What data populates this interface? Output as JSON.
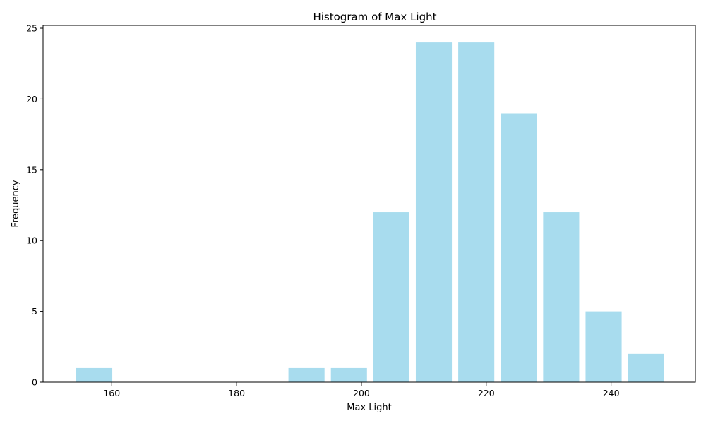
{
  "chart_data": {
    "type": "bar",
    "title": "Histogram of Max Light",
    "xlabel": "Max Light",
    "ylabel": "Frequency",
    "bins": [
      {
        "start": 153.8,
        "end": 160.6,
        "count": 1
      },
      {
        "start": 160.6,
        "end": 167.4,
        "count": 0
      },
      {
        "start": 167.4,
        "end": 174.2,
        "count": 0
      },
      {
        "start": 174.2,
        "end": 181.0,
        "count": 0
      },
      {
        "start": 181.0,
        "end": 187.8,
        "count": 0
      },
      {
        "start": 187.8,
        "end": 194.6,
        "count": 1
      },
      {
        "start": 194.6,
        "end": 201.4,
        "count": 1
      },
      {
        "start": 201.4,
        "end": 208.2,
        "count": 12
      },
      {
        "start": 208.2,
        "end": 215.0,
        "count": 24
      },
      {
        "start": 215.0,
        "end": 221.8,
        "count": 24
      },
      {
        "start": 221.8,
        "end": 228.6,
        "count": 19
      },
      {
        "start": 228.6,
        "end": 235.4,
        "count": 12
      },
      {
        "start": 235.4,
        "end": 242.2,
        "count": 5
      },
      {
        "start": 242.2,
        "end": 249.0,
        "count": 2
      }
    ],
    "xlim": [
      149.0,
      253.5
    ],
    "ylim": [
      0,
      25.2
    ],
    "xticks": [
      160,
      180,
      200,
      220,
      240
    ],
    "yticks": [
      0,
      5,
      10,
      15,
      20,
      25
    ],
    "bar_color": "#a8dcee",
    "grid": false
  }
}
